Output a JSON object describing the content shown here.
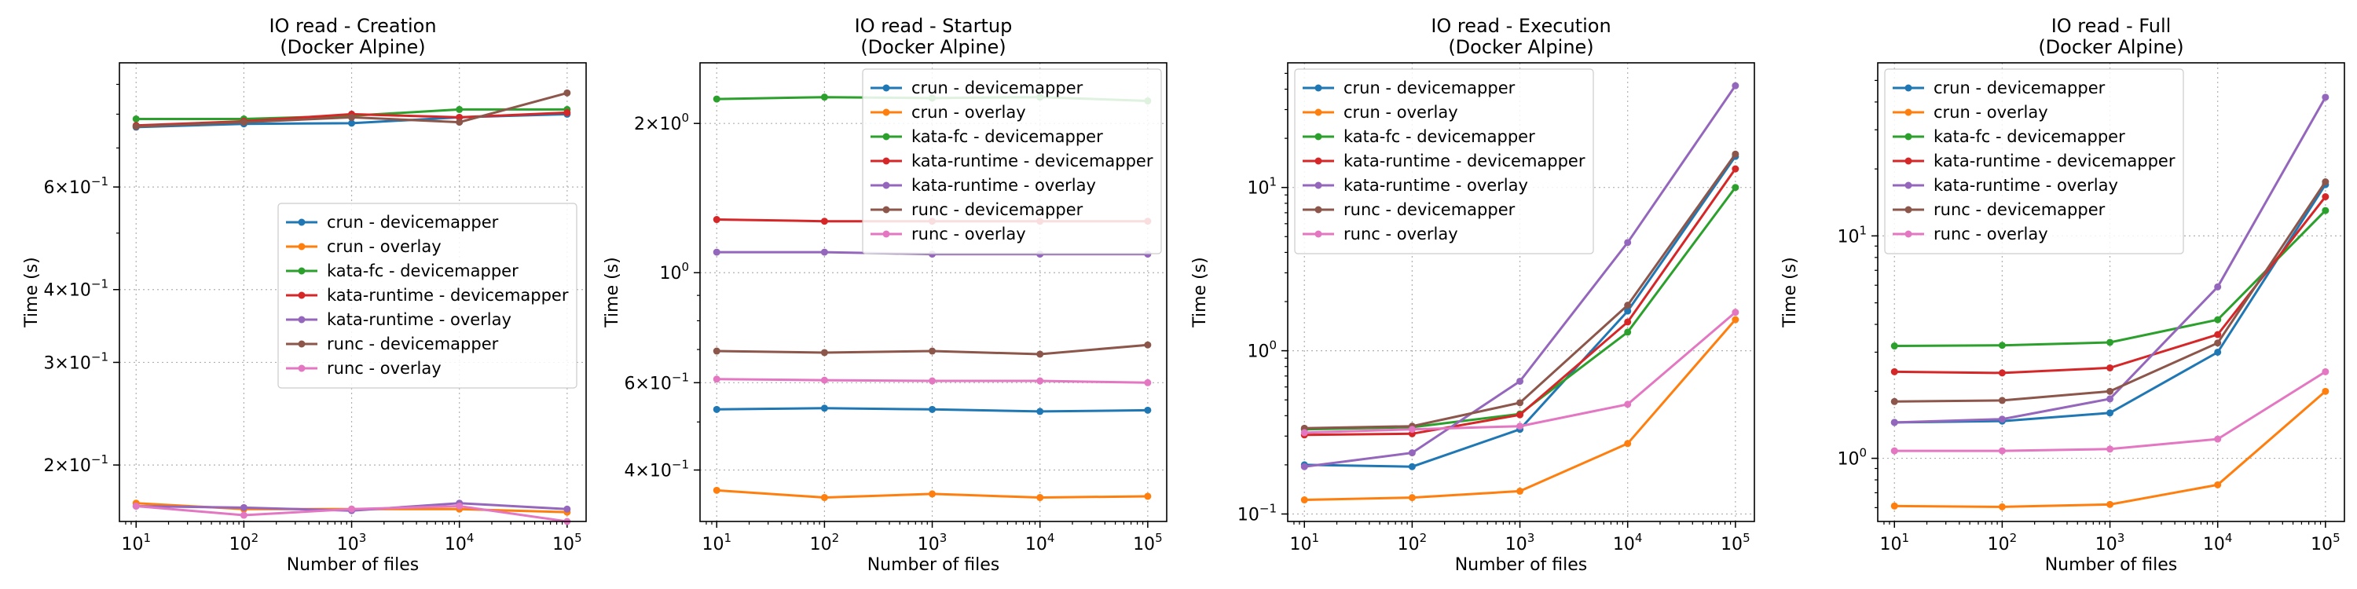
{
  "chart_data": [
    {
      "type": "line",
      "title": "IO read - Creation",
      "subtitle": "(Docker Alpine)",
      "xlabel": "Number of files",
      "ylabel": "Time (s)",
      "x": [
        10,
        100,
        1000,
        10000,
        100000
      ],
      "xscale": "log",
      "yscale": "log",
      "xlim": [
        7,
        150000
      ],
      "ylim": [
        0.16,
        0.98
      ],
      "x_ticks": [
        {
          "v": 10,
          "base": "10",
          "exp": "1"
        },
        {
          "v": 100,
          "base": "10",
          "exp": "2"
        },
        {
          "v": 1000,
          "base": "10",
          "exp": "3"
        },
        {
          "v": 10000,
          "base": "10",
          "exp": "4"
        },
        {
          "v": 100000,
          "base": "10",
          "exp": "5"
        }
      ],
      "y_ticks": [
        {
          "v": 0.2,
          "base": "2×10",
          "exp": "−1"
        },
        {
          "v": 0.3,
          "base": "3×10",
          "exp": "−1"
        },
        {
          "v": 0.4,
          "base": "4×10",
          "exp": "−1"
        },
        {
          "v": 0.6,
          "base": "6×10",
          "exp": "−1"
        }
      ],
      "grid": true,
      "legend": "center-right",
      "series": [
        {
          "name": "crun - devicemapper",
          "color": "#1f77b4",
          "values": [
            0.76,
            0.77,
            0.772,
            0.79,
            0.8
          ]
        },
        {
          "name": "crun - overlay",
          "color": "#ff7f0e",
          "values": [
            0.172,
            0.168,
            0.168,
            0.168,
            0.166
          ]
        },
        {
          "name": "kata-fc - devicemapper",
          "color": "#2ca02c",
          "values": [
            0.785,
            0.785,
            0.795,
            0.815,
            0.815
          ]
        },
        {
          "name": "kata-runtime - devicemapper",
          "color": "#d62728",
          "values": [
            0.765,
            0.778,
            0.8,
            0.79,
            0.805
          ]
        },
        {
          "name": "kata-runtime - overlay",
          "color": "#9467bd",
          "values": [
            0.17,
            0.169,
            0.167,
            0.172,
            0.168
          ]
        },
        {
          "name": "runc - devicemapper",
          "color": "#8c564b",
          "values": [
            0.762,
            0.775,
            0.79,
            0.775,
            0.87
          ]
        },
        {
          "name": "runc - overlay",
          "color": "#e377c2",
          "values": [
            0.17,
            0.164,
            0.168,
            0.17,
            0.16
          ]
        }
      ]
    },
    {
      "type": "line",
      "title": "IO read - Startup",
      "subtitle": "(Docker Alpine)",
      "xlabel": "Number of files",
      "ylabel": "Time (s)",
      "x": [
        10,
        100,
        1000,
        10000,
        100000
      ],
      "xscale": "log",
      "yscale": "log",
      "xlim": [
        7,
        150000
      ],
      "ylim": [
        0.315,
        2.65
      ],
      "x_ticks": [
        {
          "v": 10,
          "base": "10",
          "exp": "1"
        },
        {
          "v": 100,
          "base": "10",
          "exp": "2"
        },
        {
          "v": 1000,
          "base": "10",
          "exp": "3"
        },
        {
          "v": 10000,
          "base": "10",
          "exp": "4"
        },
        {
          "v": 100000,
          "base": "10",
          "exp": "5"
        }
      ],
      "y_ticks": [
        {
          "v": 0.4,
          "base": "4×10",
          "exp": "−1"
        },
        {
          "v": 0.6,
          "base": "6×10",
          "exp": "−1"
        },
        {
          "v": 1,
          "base": "10",
          "exp": "0"
        },
        {
          "v": 2,
          "base": "2×10",
          "exp": "0"
        }
      ],
      "grid": true,
      "legend": "upper-right",
      "series": [
        {
          "name": "crun - devicemapper",
          "color": "#1f77b4",
          "values": [
            0.53,
            0.533,
            0.53,
            0.525,
            0.528
          ]
        },
        {
          "name": "crun - overlay",
          "color": "#ff7f0e",
          "values": [
            0.364,
            0.352,
            0.358,
            0.352,
            0.354
          ]
        },
        {
          "name": "kata-fc - devicemapper",
          "color": "#2ca02c",
          "values": [
            2.24,
            2.26,
            2.25,
            2.26,
            2.22
          ]
        },
        {
          "name": "kata-runtime - devicemapper",
          "color": "#d62728",
          "values": [
            1.28,
            1.27,
            1.27,
            1.27,
            1.27
          ]
        },
        {
          "name": "kata-runtime - overlay",
          "color": "#9467bd",
          "values": [
            1.1,
            1.1,
            1.09,
            1.09,
            1.09
          ]
        },
        {
          "name": "runc - devicemapper",
          "color": "#8c564b",
          "values": [
            0.695,
            0.69,
            0.695,
            0.685,
            0.715
          ]
        },
        {
          "name": "runc - overlay",
          "color": "#e377c2",
          "values": [
            0.61,
            0.607,
            0.605,
            0.605,
            0.6
          ]
        }
      ]
    },
    {
      "type": "line",
      "title": "IO read - Execution",
      "subtitle": "(Docker Alpine)",
      "xlabel": "Number of files",
      "ylabel": "Time (s)",
      "x": [
        10,
        100,
        1000,
        10000,
        100000
      ],
      "xscale": "log",
      "yscale": "log",
      "xlim": [
        7,
        150000
      ],
      "ylim": [
        0.09,
        58
      ],
      "x_ticks": [
        {
          "v": 10,
          "base": "10",
          "exp": "1"
        },
        {
          "v": 100,
          "base": "10",
          "exp": "2"
        },
        {
          "v": 1000,
          "base": "10",
          "exp": "3"
        },
        {
          "v": 10000,
          "base": "10",
          "exp": "4"
        },
        {
          "v": 100000,
          "base": "10",
          "exp": "5"
        }
      ],
      "y_ticks": [
        {
          "v": 0.1,
          "base": "10",
          "exp": "−1"
        },
        {
          "v": 1,
          "base": "10",
          "exp": "0"
        },
        {
          "v": 10,
          "base": "10",
          "exp": "1"
        }
      ],
      "grid": true,
      "legend": "upper-left",
      "series": [
        {
          "name": "crun - devicemapper",
          "color": "#1f77b4",
          "values": [
            0.2,
            0.195,
            0.33,
            1.75,
            15.5
          ]
        },
        {
          "name": "crun - overlay",
          "color": "#ff7f0e",
          "values": [
            0.122,
            0.126,
            0.138,
            0.27,
            1.55
          ]
        },
        {
          "name": "kata-fc - devicemapper",
          "color": "#2ca02c",
          "values": [
            0.33,
            0.34,
            0.41,
            1.3,
            10.0
          ]
        },
        {
          "name": "kata-runtime - devicemapper",
          "color": "#d62728",
          "values": [
            0.305,
            0.31,
            0.405,
            1.5,
            13.0
          ]
        },
        {
          "name": "kata-runtime - overlay",
          "color": "#9467bd",
          "values": [
            0.195,
            0.237,
            0.65,
            4.6,
            42.0
          ]
        },
        {
          "name": "runc - devicemapper",
          "color": "#8c564b",
          "values": [
            0.335,
            0.345,
            0.48,
            1.9,
            16.0
          ]
        },
        {
          "name": "runc - overlay",
          "color": "#e377c2",
          "values": [
            0.315,
            0.33,
            0.345,
            0.47,
            1.72
          ]
        }
      ]
    },
    {
      "type": "line",
      "title": "IO read - Full",
      "subtitle": "(Docker Alpine)",
      "xlabel": "Number of files",
      "ylabel": "Time (s)",
      "x": [
        10,
        100,
        1000,
        10000,
        100000
      ],
      "xscale": "log",
      "yscale": "log",
      "xlim": [
        7,
        150000
      ],
      "ylim": [
        0.52,
        60
      ],
      "x_ticks": [
        {
          "v": 10,
          "base": "10",
          "exp": "1"
        },
        {
          "v": 100,
          "base": "10",
          "exp": "2"
        },
        {
          "v": 1000,
          "base": "10",
          "exp": "3"
        },
        {
          "v": 10000,
          "base": "10",
          "exp": "4"
        },
        {
          "v": 100000,
          "base": "10",
          "exp": "5"
        }
      ],
      "y_ticks": [
        {
          "v": 1,
          "base": "10",
          "exp": "0"
        },
        {
          "v": 10,
          "base": "10",
          "exp": "1"
        }
      ],
      "grid": true,
      "legend": "upper-left",
      "series": [
        {
          "name": "crun - devicemapper",
          "color": "#1f77b4",
          "values": [
            1.45,
            1.47,
            1.6,
            3.0,
            17.0
          ]
        },
        {
          "name": "crun - overlay",
          "color": "#ff7f0e",
          "values": [
            0.61,
            0.605,
            0.62,
            0.76,
            2.0
          ]
        },
        {
          "name": "kata-fc - devicemapper",
          "color": "#2ca02c",
          "values": [
            3.2,
            3.22,
            3.32,
            4.2,
            13.0
          ]
        },
        {
          "name": "kata-runtime - devicemapper",
          "color": "#d62728",
          "values": [
            2.45,
            2.42,
            2.55,
            3.6,
            15.0
          ]
        },
        {
          "name": "kata-runtime - overlay",
          "color": "#9467bd",
          "values": [
            1.45,
            1.5,
            1.85,
            5.9,
            42.0
          ]
        },
        {
          "name": "runc - devicemapper",
          "color": "#8c564b",
          "values": [
            1.8,
            1.82,
            2.0,
            3.3,
            17.5
          ]
        },
        {
          "name": "runc - overlay",
          "color": "#e377c2",
          "values": [
            1.08,
            1.08,
            1.1,
            1.22,
            2.45
          ]
        }
      ]
    }
  ]
}
